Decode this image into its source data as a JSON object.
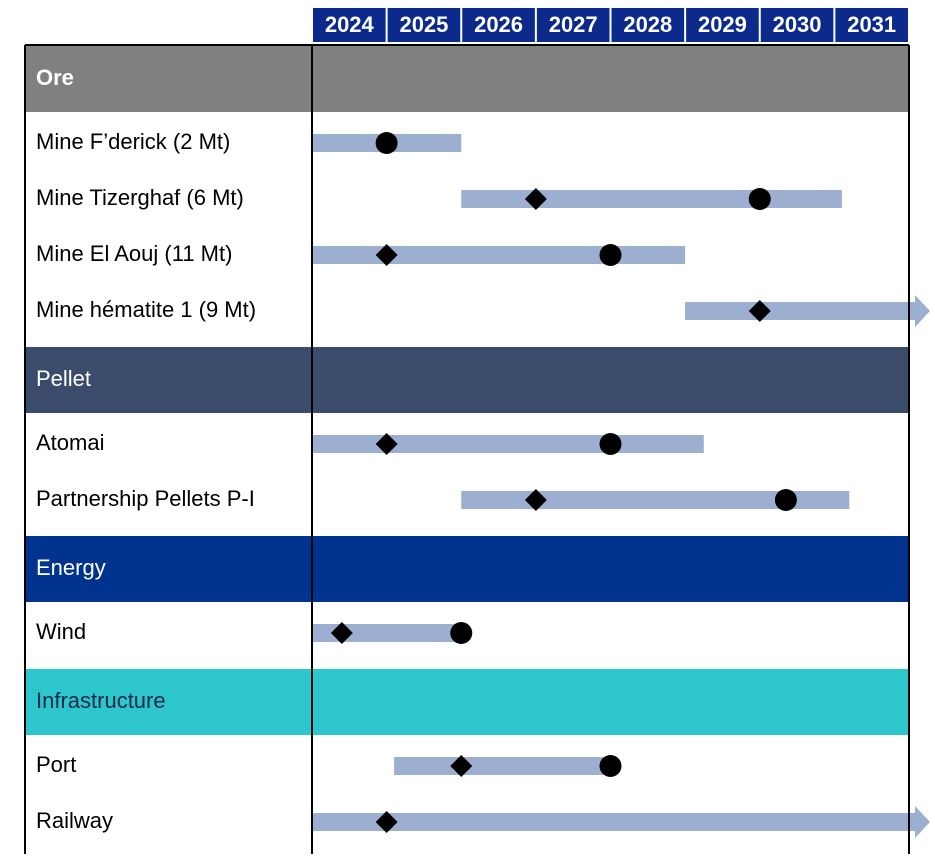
{
  "chart_data": {
    "type": "gantt",
    "categories": [
      "2024",
      "2025",
      "2026",
      "2027",
      "2028",
      "2029",
      "2030",
      "2031"
    ],
    "xlim": [
      2024,
      2032
    ],
    "header_color": "#0b2a8c",
    "bar_color": "#9dafd0",
    "sections": [
      {
        "name": "Ore",
        "color": "#808080",
        "text_color": "#ffffff",
        "bold": true,
        "tasks": [
          {
            "name": "Mine F’derick (2 Mt)",
            "start": 2024,
            "end": 2026,
            "circle": 2025
          },
          {
            "name": "Mine Tizerghaf (6 Mt)",
            "start": 2026,
            "end": 2031.1,
            "diamond": 2027,
            "circle": 2030
          },
          {
            "name": "Mine El Aouj (11 Mt)",
            "start": 2024,
            "end": 2029,
            "diamond": 2025,
            "circle": 2028
          },
          {
            "name": "Mine hématite 1 (9 Mt)",
            "start": 2029,
            "arrow": true,
            "diamond": 2030
          }
        ]
      },
      {
        "name": "Pellet",
        "color": "#3a4b6c",
        "text_color": "#ffffff",
        "bold": false,
        "tasks": [
          {
            "name": "Atomai",
            "start": 2024,
            "end": 2029.25,
            "diamond": 2025,
            "circle": 2028
          },
          {
            "name": "Partnership Pellets P-I",
            "start": 2026,
            "end": 2031.2,
            "diamond": 2027,
            "circle": 2030.35
          }
        ]
      },
      {
        "name": "Energy",
        "color": "#00338d",
        "text_color": "#ffffff",
        "bold": false,
        "tasks": [
          {
            "name": "Wind",
            "start": 2024,
            "end": 2026,
            "diamond": 2024.4,
            "circle": 2026
          }
        ]
      },
      {
        "name": "Infrastructure",
        "color": "#2cc6cc",
        "text_color": "#1a2a4a",
        "bold": false,
        "tasks": [
          {
            "name": "Port",
            "start": 2025.1,
            "end": 2028,
            "diamond": 2026,
            "circle": 2028
          },
          {
            "name": "Railway",
            "start": 2024,
            "arrow": true,
            "diamond": 2025
          }
        ]
      }
    ]
  }
}
